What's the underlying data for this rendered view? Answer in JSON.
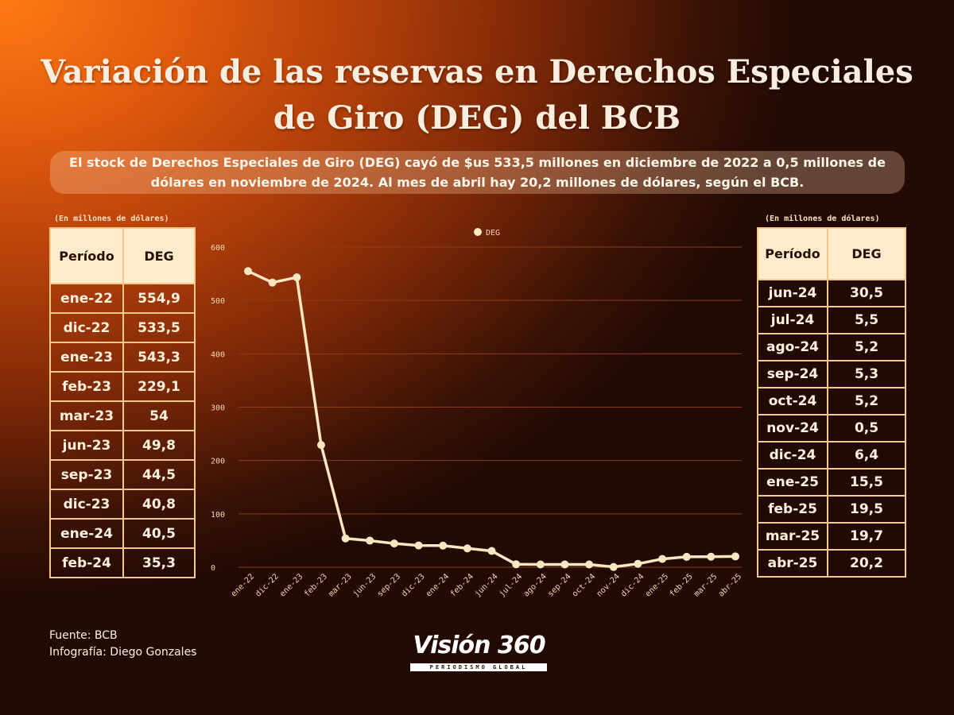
{
  "header": {
    "title_line1": "Variación de las reservas en Derechos Especiales",
    "title_line2": "de Giro (DEG) del BCB",
    "subtitle_line1": "El stock de Derechos Especiales de Giro (DEG) cayó de $us  533,5 millones en diciembre de 2022  a 0,5 millones de",
    "subtitle_line2": "dólares en noviembre de 2024. Al mes de abril hay 20,2 millones de dólares, según el BCB."
  },
  "tables": {
    "unit_note": "(En millones de dólares)",
    "col_period": "Período",
    "col_value": "DEG",
    "left": [
      {
        "period": "ene-22",
        "value": "554,9"
      },
      {
        "period": "dic-22",
        "value": "533,5"
      },
      {
        "period": "ene-23",
        "value": "543,3"
      },
      {
        "period": "feb-23",
        "value": "229,1"
      },
      {
        "period": "mar-23",
        "value": "54"
      },
      {
        "period": "jun-23",
        "value": "49,8"
      },
      {
        "period": "sep-23",
        "value": "44,5"
      },
      {
        "period": "dic-23",
        "value": "40,8"
      },
      {
        "period": "ene-24",
        "value": "40,5"
      },
      {
        "period": "feb-24",
        "value": "35,3"
      }
    ],
    "right": [
      {
        "period": "jun-24",
        "value": "30,5"
      },
      {
        "period": "jul-24",
        "value": "5,5"
      },
      {
        "period": "ago-24",
        "value": "5,2"
      },
      {
        "period": "sep-24",
        "value": "5,3"
      },
      {
        "period": "oct-24",
        "value": "5,2"
      },
      {
        "period": "nov-24",
        "value": "0,5"
      },
      {
        "period": "dic-24",
        "value": "6,4"
      },
      {
        "period": "ene-25",
        "value": "15,5"
      },
      {
        "period": "feb-25",
        "value": "19,5"
      },
      {
        "period": "mar-25",
        "value": "19,7"
      },
      {
        "period": "abr-25",
        "value": "20,2"
      }
    ]
  },
  "chart_data": {
    "type": "line",
    "legend_position": "top-center",
    "grid": true,
    "ylim": [
      0,
      600
    ],
    "yticks": [
      0,
      100,
      200,
      300,
      400,
      500,
      600
    ],
    "categories": [
      "ene-22",
      "dic-22",
      "ene-23",
      "feb-23",
      "mar-23",
      "jun-23",
      "sep-23",
      "dic-23",
      "ene-24",
      "feb-24",
      "jun-24",
      "jul-24",
      "ago-24",
      "sep-24",
      "oct-24",
      "nov-24",
      "dic-24",
      "ene-25",
      "feb-25",
      "mar-25",
      "abr-25"
    ],
    "series": [
      {
        "name": "DEG",
        "values": [
          554.9,
          533.5,
          543.3,
          229.1,
          54,
          49.8,
          44.5,
          40.8,
          40.5,
          35.3,
          30.5,
          5.5,
          5.2,
          5.3,
          5.2,
          0.5,
          6.4,
          15.5,
          19.5,
          19.7,
          20.2
        ]
      }
    ],
    "colors": {
      "line": "#fbe6c2",
      "grid": "#8a3d18",
      "tick_text": "#f3d7b4"
    }
  },
  "footer": {
    "source": "Fuente: BCB",
    "credit": "Infografía: Diego Gonzales",
    "logo_text": "Visión 360",
    "logo_tagline": "PERIODISMO GLOBAL"
  }
}
